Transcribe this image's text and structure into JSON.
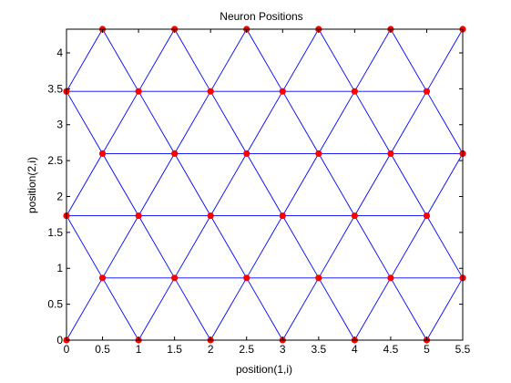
{
  "chart_data": {
    "type": "scatter",
    "title": "Neuron Positions",
    "xlabel": "position(1,i)",
    "ylabel": "position(2,i)",
    "xlim": [
      0,
      5.5
    ],
    "ylim": [
      0,
      4.33
    ],
    "grid": false,
    "xticks": [
      0,
      0.5,
      1,
      1.5,
      2,
      2.5,
      3,
      3.5,
      4,
      4.5,
      5,
      5.5
    ],
    "xtick_labels": [
      "0",
      "0.5",
      "1",
      "1.5",
      "2",
      "2.5",
      "3",
      "3.5",
      "4",
      "4.5",
      "5",
      "5.5"
    ],
    "yticks": [
      0,
      0.5,
      1,
      1.5,
      2,
      2.5,
      3,
      3.5,
      4
    ],
    "ytick_labels": [
      "0",
      "0.5",
      "1",
      "1.5",
      "2",
      "2.5",
      "3",
      "3.5",
      "4"
    ],
    "points": [
      [
        0,
        0
      ],
      [
        1,
        0
      ],
      [
        2,
        0
      ],
      [
        3,
        0
      ],
      [
        4,
        0
      ],
      [
        5,
        0
      ],
      [
        0.5,
        0.866
      ],
      [
        1.5,
        0.866
      ],
      [
        2.5,
        0.866
      ],
      [
        3.5,
        0.866
      ],
      [
        4.5,
        0.866
      ],
      [
        5.5,
        0.866
      ],
      [
        0,
        1.732
      ],
      [
        1,
        1.732
      ],
      [
        2,
        1.732
      ],
      [
        3,
        1.732
      ],
      [
        4,
        1.732
      ],
      [
        5,
        1.732
      ],
      [
        0.5,
        2.598
      ],
      [
        1.5,
        2.598
      ],
      [
        2.5,
        2.598
      ],
      [
        3.5,
        2.598
      ],
      [
        4.5,
        2.598
      ],
      [
        5.5,
        2.598
      ],
      [
        0,
        3.464
      ],
      [
        1,
        3.464
      ],
      [
        2,
        3.464
      ],
      [
        3,
        3.464
      ],
      [
        4,
        3.464
      ],
      [
        5,
        3.464
      ],
      [
        0.5,
        4.33
      ],
      [
        1.5,
        4.33
      ],
      [
        2.5,
        4.33
      ],
      [
        3.5,
        4.33
      ],
      [
        4.5,
        4.33
      ],
      [
        5.5,
        4.33
      ]
    ],
    "colors": {
      "points": "#ff0000",
      "edges": "#0000ff",
      "axes": "#000000",
      "background": "#ffffff"
    }
  }
}
